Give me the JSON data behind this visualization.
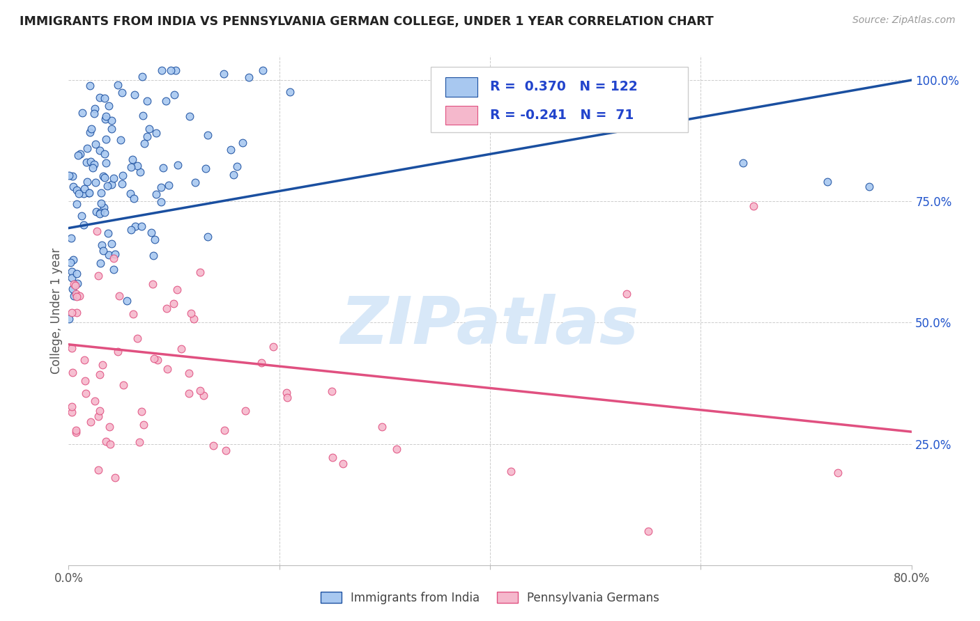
{
  "title": "IMMIGRANTS FROM INDIA VS PENNSYLVANIA GERMAN COLLEGE, UNDER 1 YEAR CORRELATION CHART",
  "source": "Source: ZipAtlas.com",
  "ylabel": "College, Under 1 year",
  "ytick_labels": [
    "25.0%",
    "50.0%",
    "75.0%",
    "100.0%"
  ],
  "legend1_label": "Immigrants from India",
  "legend2_label": "Pennsylvania Germans",
  "R1": 0.37,
  "N1": 122,
  "R2": -0.241,
  "N2": 71,
  "color_blue": "#a8c8f0",
  "color_pink": "#f5b8cc",
  "line_blue": "#1a4fa0",
  "line_pink": "#e05080",
  "background_color": "#ffffff",
  "grid_color": "#cccccc",
  "title_color": "#222222",
  "source_color": "#999999",
  "legend_text_color": "#2244cc",
  "watermark_text": "ZIPatlas",
  "watermark_color": "#d8e8f8",
  "xlim": [
    0.0,
    0.8
  ],
  "ylim": [
    0.0,
    1.05
  ],
  "blue_line_y0": 0.695,
  "blue_line_y1": 1.0,
  "pink_line_y0": 0.455,
  "pink_line_y1": 0.275
}
